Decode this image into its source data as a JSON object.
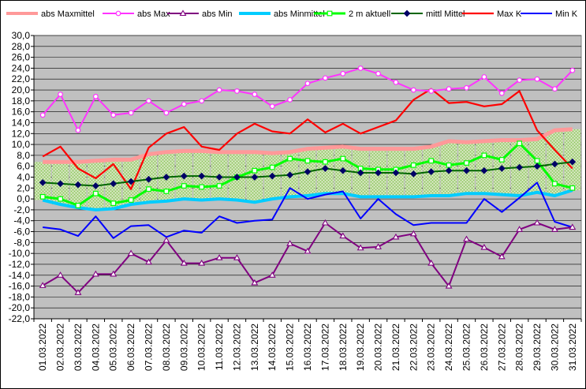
{
  "chart_data": {
    "type": "line",
    "title": "",
    "xlabel": "",
    "ylabel": "",
    "ylim": [
      -22,
      30
    ],
    "yticks": [
      "30,0",
      "28,0",
      "26,0",
      "24,0",
      "22,0",
      "20,0",
      "18,0",
      "16,0",
      "14,0",
      "12,0",
      "10,0",
      "8,0",
      "6,0",
      "4,0",
      "2,0",
      "0,0",
      "-2,0",
      "-4,0",
      "-6,0",
      "-8,0",
      "-10,0",
      "-12,0",
      "-14,0",
      "-16,0",
      "-18,0",
      "-20,0",
      "-22,0"
    ],
    "grid": "horizontal",
    "legend": "top",
    "plot_background": "#c0c0c0",
    "categories": [
      "01.03.2022",
      "02.03.2022",
      "03.03.2022",
      "04.03.2022",
      "05.03.2022",
      "06.03.2022",
      "07.03.2022",
      "08.03.2022",
      "09.03.2022",
      "10.03.2022",
      "11.03.2022",
      "12.03.2022",
      "13.03.2022",
      "14.03.2022",
      "15.03.2022",
      "16.03.2022",
      "17.03.2022",
      "18.03.2022",
      "19.03.2022",
      "20.03.2022",
      "21.03.2022",
      "22.03.2022",
      "23.03.2022",
      "24.03.2022",
      "25.03.2022",
      "26.03.2022",
      "27.03.2022",
      "28.03.2022",
      "29.03.2022",
      "30.03.2022",
      "31.03.2022"
    ],
    "series": [
      {
        "name": "abs Maxmittel",
        "color": "#ff9999",
        "values": [
          6.8,
          6.8,
          6.8,
          7.0,
          7.2,
          7.2,
          8.2,
          8.6,
          8.8,
          8.8,
          8.6,
          8.6,
          8.6,
          8.4,
          8.6,
          9.2,
          9.4,
          9.6,
          9.2,
          9.2,
          9.2,
          9.2,
          9.6,
          10.6,
          10.4,
          10.6,
          10.8,
          10.8,
          11.0,
          12.6,
          12.8
        ]
      },
      {
        "name": "abs Max",
        "color": "#ff33ff",
        "values": [
          15.4,
          19.2,
          12.6,
          18.8,
          15.4,
          15.8,
          18.0,
          15.8,
          17.4,
          18.0,
          20.0,
          19.8,
          19.2,
          17.0,
          18.2,
          21.2,
          22.2,
          23.0,
          24.0,
          23.0,
          21.4,
          20.0,
          19.8,
          20.2,
          20.4,
          22.4,
          19.4,
          21.8,
          22.0,
          20.2,
          23.6
        ]
      },
      {
        "name": "abs Min",
        "color": "#800080",
        "values": [
          -15.9,
          -14.0,
          -17.2,
          -13.8,
          -13.8,
          -10.0,
          -11.6,
          -7.6,
          -11.8,
          -11.8,
          -10.8,
          -10.8,
          -15.4,
          -14.0,
          -8.2,
          -9.6,
          -4.4,
          -6.8,
          -9.0,
          -8.8,
          -7.0,
          -6.4,
          -11.8,
          -16.0,
          -7.4,
          -8.9,
          -10.6,
          -5.6,
          -4.4,
          -5.6,
          -5.2
        ]
      },
      {
        "name": "abs Minmittel",
        "color": "#00ccff",
        "values": [
          -0.2,
          -1.0,
          -1.6,
          -2.0,
          -1.8,
          -1.0,
          -0.6,
          -0.4,
          0.0,
          -0.2,
          0.0,
          -0.2,
          -0.6,
          0.0,
          0.4,
          0.6,
          1.0,
          1.0,
          0.4,
          0.4,
          0.4,
          0.4,
          0.6,
          0.6,
          1.0,
          1.0,
          0.8,
          0.6,
          1.2,
          0.6,
          1.6
        ]
      },
      {
        "name": "2 m aktuell",
        "color": "#00ff00",
        "values": [
          0.4,
          0.0,
          -1.2,
          1.0,
          -0.8,
          -0.2,
          1.8,
          1.4,
          2.4,
          2.2,
          2.4,
          4.0,
          5.2,
          5.8,
          7.4,
          7.0,
          6.8,
          7.4,
          5.6,
          5.4,
          5.4,
          6.2,
          7.0,
          6.2,
          6.6,
          8.0,
          7.2,
          10.2,
          7.0,
          2.8,
          2.0
        ]
      },
      {
        "name": "mittl Mittel",
        "color": "#006600",
        "values": [
          3.0,
          2.8,
          2.6,
          2.4,
          2.8,
          3.2,
          3.6,
          4.0,
          4.2,
          4.2,
          4.0,
          4.0,
          4.0,
          4.2,
          4.4,
          5.0,
          5.6,
          5.2,
          4.8,
          4.8,
          4.8,
          4.6,
          5.0,
          5.2,
          5.2,
          5.2,
          5.6,
          5.8,
          6.0,
          6.4,
          6.8
        ]
      },
      {
        "name": "Max K",
        "color": "#ff0000",
        "values": [
          7.8,
          9.6,
          5.6,
          3.8,
          6.4,
          1.8,
          9.4,
          12.0,
          13.2,
          9.6,
          9.0,
          12.0,
          13.8,
          12.4,
          12.0,
          14.6,
          12.2,
          13.8,
          12.0,
          13.2,
          14.4,
          18.2,
          20.2,
          17.6,
          17.8,
          17.0,
          17.4,
          19.8,
          12.6,
          9.0,
          5.6
        ]
      },
      {
        "name": "Min K",
        "color": "#0000ff",
        "values": [
          -5.2,
          -5.6,
          -6.8,
          -3.2,
          -7.2,
          -5.0,
          -4.8,
          -7.0,
          -5.8,
          -6.2,
          -3.2,
          -4.4,
          -4.0,
          -3.8,
          2.0,
          0.0,
          0.8,
          1.4,
          -3.6,
          0.0,
          -2.8,
          -4.8,
          -4.4,
          -4.4,
          -4.4,
          0.0,
          -2.4,
          0.2,
          3.0,
          -4.2,
          -5.2
        ]
      }
    ]
  }
}
